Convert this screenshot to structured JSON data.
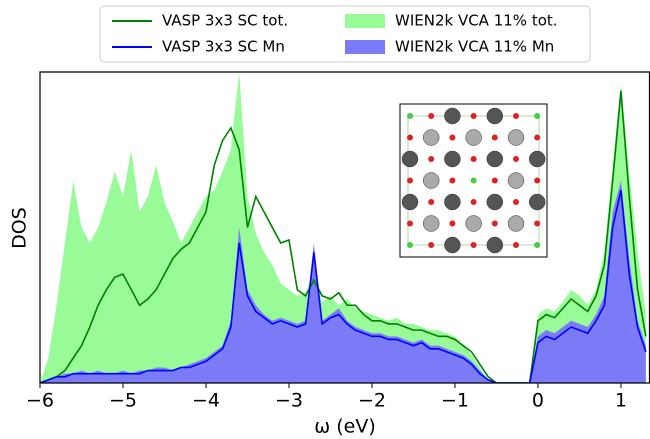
{
  "chart_data": {
    "type": "area-line",
    "xlabel": "ω (eV)",
    "ylabel": "DOS",
    "xlim": [
      -6,
      1.35
    ],
    "ylim": [
      0,
      100
    ],
    "xticks": [
      {
        "value": -6,
        "label": "−6"
      },
      {
        "value": -5,
        "label": "−5"
      },
      {
        "value": -4,
        "label": "−4"
      },
      {
        "value": -3,
        "label": "−3"
      },
      {
        "value": -2,
        "label": "−2"
      },
      {
        "value": -1,
        "label": "−1"
      },
      0,
      1
    ],
    "x": [
      -6.0,
      -5.9,
      -5.8,
      -5.7,
      -5.6,
      -5.5,
      -5.4,
      -5.3,
      -5.2,
      -5.1,
      -5.0,
      -4.9,
      -4.8,
      -4.7,
      -4.6,
      -4.5,
      -4.4,
      -4.3,
      -4.2,
      -4.1,
      -4.0,
      -3.9,
      -3.8,
      -3.7,
      -3.6,
      -3.5,
      -3.4,
      -3.3,
      -3.2,
      -3.1,
      -3.0,
      -2.9,
      -2.8,
      -2.7,
      -2.6,
      -2.5,
      -2.4,
      -2.3,
      -2.2,
      -2.1,
      -2.0,
      -1.9,
      -1.8,
      -1.7,
      -1.6,
      -1.5,
      -1.4,
      -1.3,
      -1.2,
      -1.1,
      -1.0,
      -0.9,
      -0.8,
      -0.7,
      -0.6,
      -0.5,
      -0.4,
      -0.3,
      -0.2,
      -0.1,
      0.0,
      0.1,
      0.2,
      0.3,
      0.4,
      0.5,
      0.6,
      0.7,
      0.8,
      0.9,
      1.0,
      1.1,
      1.2,
      1.3
    ],
    "series": [
      {
        "name": "VASP 3x3 SC tot.",
        "style": "line",
        "color": "#008000",
        "values": [
          0,
          1,
          2,
          4,
          8,
          12,
          18,
          25,
          30,
          34,
          35,
          30,
          25,
          27,
          30,
          35,
          40,
          43,
          45,
          50,
          55,
          70,
          78,
          82,
          75,
          50,
          60,
          55,
          50,
          45,
          46,
          30,
          28,
          33,
          28,
          27,
          29,
          25,
          25,
          22,
          20,
          20,
          19,
          19,
          18,
          17,
          17,
          16,
          15,
          15,
          14,
          12,
          10,
          6,
          2,
          0,
          0,
          0,
          0,
          0,
          20,
          22,
          21,
          24,
          27,
          25,
          23,
          28,
          38,
          65,
          94,
          60,
          30,
          15
        ]
      },
      {
        "name": "VASP 3x3 SC Mn",
        "style": "line",
        "color": "#0000ff",
        "values": [
          0,
          1,
          2,
          2,
          3,
          3,
          3,
          3,
          3,
          3,
          3,
          3,
          3,
          4,
          4,
          4,
          4,
          5,
          5,
          6,
          7,
          9,
          11,
          18,
          45,
          28,
          23,
          21,
          19,
          20,
          19,
          18,
          19,
          42,
          19,
          21,
          22,
          19,
          17,
          16,
          15,
          15,
          14,
          14,
          13,
          12,
          13,
          11,
          11,
          10,
          9,
          8,
          6,
          3,
          1,
          0,
          0,
          0,
          0,
          0,
          13,
          15,
          14,
          16,
          18,
          17,
          16,
          20,
          25,
          50,
          62,
          35,
          18,
          10
        ]
      },
      {
        "name": "WIEN2k VCA 11% tot.",
        "style": "fill",
        "color": "#98fb98",
        "values": [
          0,
          8,
          25,
          45,
          65,
          50,
          45,
          50,
          58,
          68,
          60,
          75,
          55,
          60,
          70,
          58,
          52,
          45,
          50,
          55,
          60,
          62,
          68,
          75,
          100,
          60,
          48,
          42,
          38,
          32,
          30,
          28,
          29,
          36,
          26,
          28,
          25,
          27,
          24,
          23,
          22,
          21,
          20,
          21,
          19,
          19,
          18,
          17,
          17,
          16,
          15,
          12,
          9,
          5,
          1,
          0,
          0,
          0,
          0,
          0,
          22,
          24,
          23,
          26,
          30,
          28,
          25,
          30,
          42,
          70,
          96,
          68,
          42,
          22
        ]
      },
      {
        "name": "WIEN2k VCA 11% Mn",
        "style": "fill",
        "color": "#7b7bf7",
        "values": [
          0,
          1,
          2,
          3,
          3,
          4,
          3,
          4,
          3,
          3,
          4,
          3,
          4,
          4,
          5,
          5,
          4,
          5,
          6,
          7,
          8,
          10,
          12,
          20,
          50,
          30,
          25,
          22,
          20,
          21,
          20,
          19,
          20,
          45,
          20,
          22,
          24,
          20,
          18,
          17,
          16,
          16,
          15,
          15,
          14,
          13,
          14,
          12,
          12,
          11,
          10,
          9,
          7,
          4,
          1,
          0,
          0,
          0,
          0,
          0,
          15,
          17,
          16,
          18,
          20,
          19,
          18,
          22,
          28,
          55,
          65,
          40,
          20,
          12
        ]
      }
    ]
  }
}
